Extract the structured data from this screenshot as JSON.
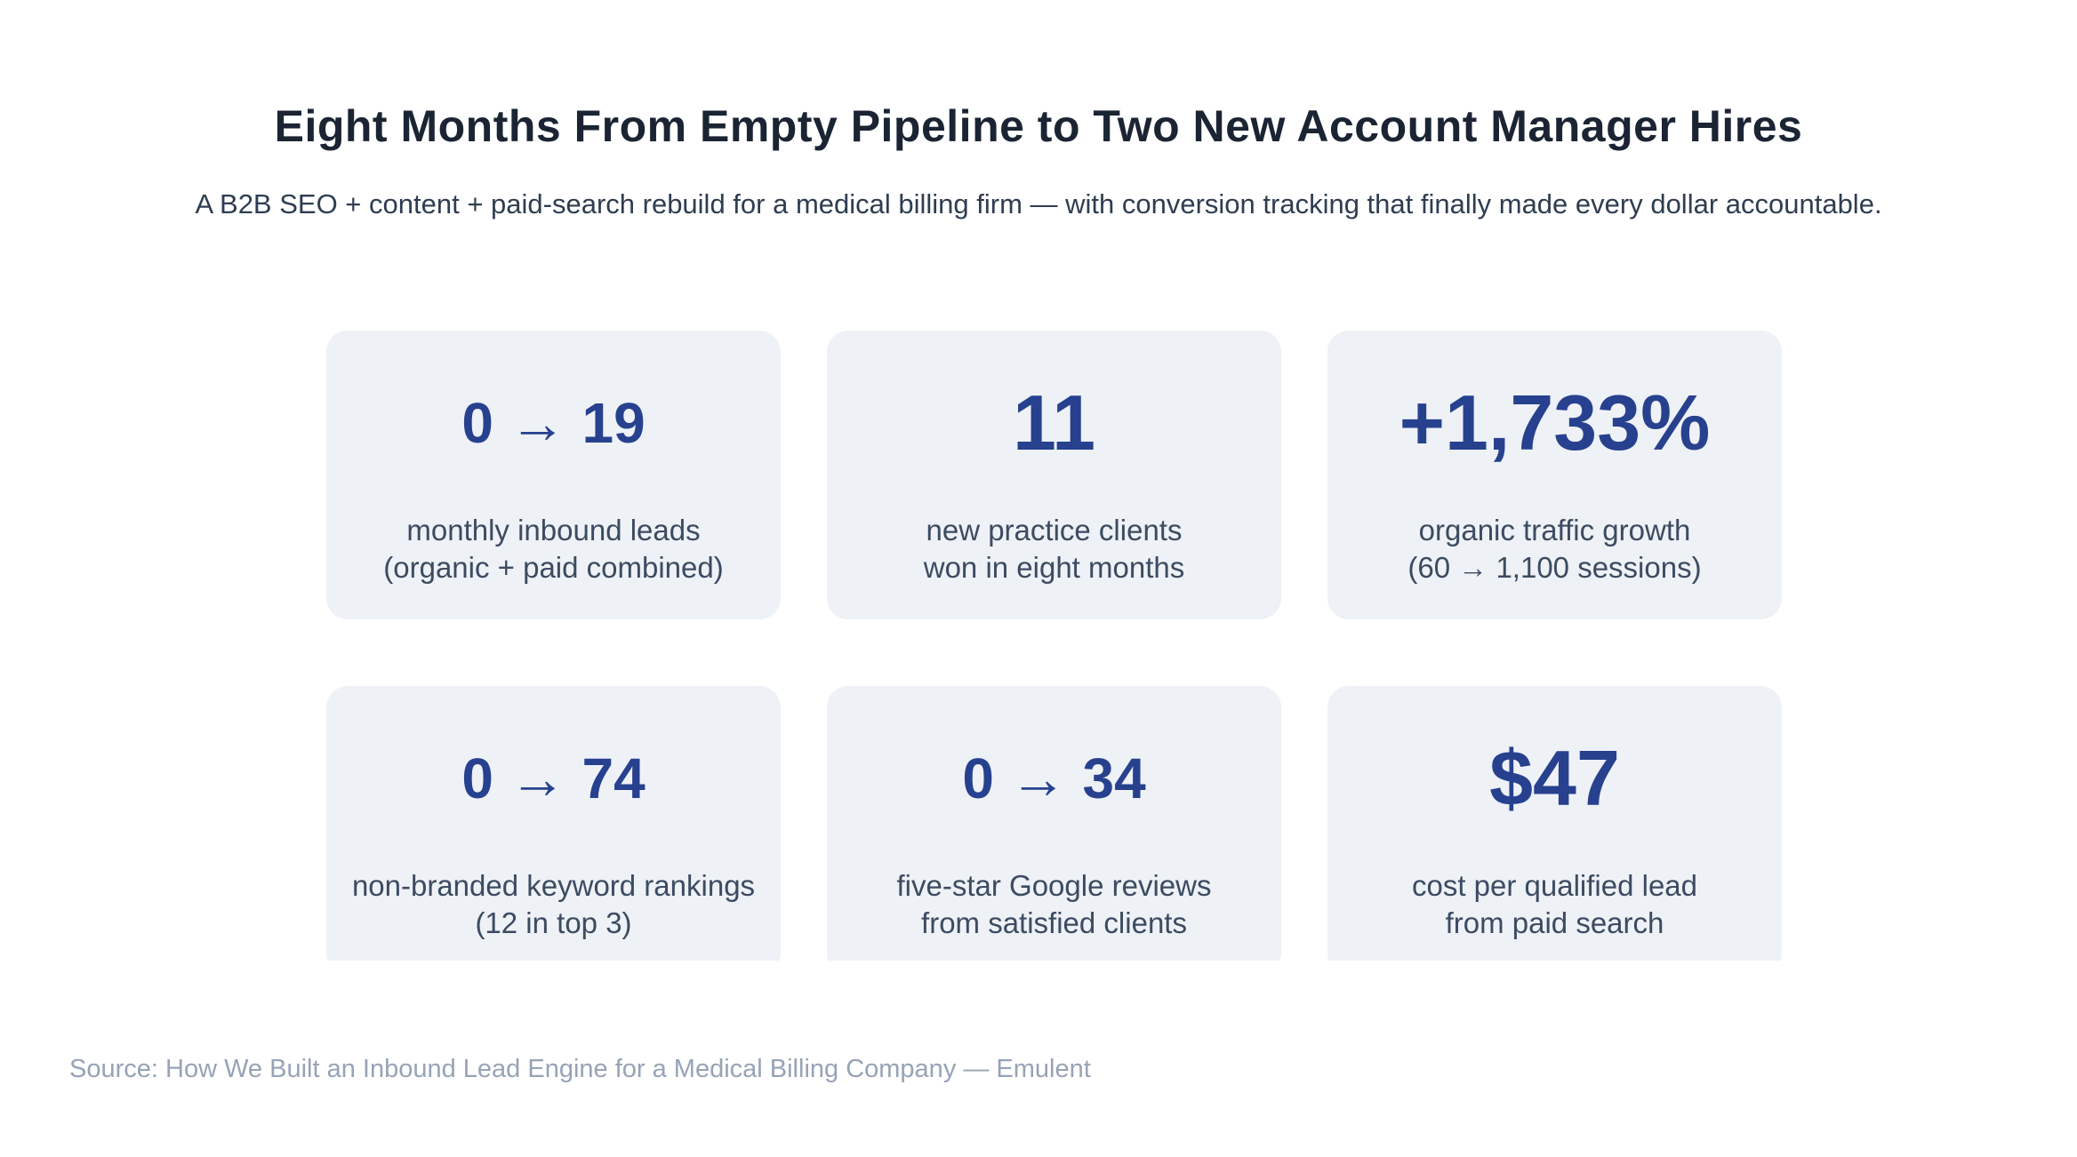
{
  "header": {
    "title": "Eight Months From Empty Pipeline to Two New Account Manager Hires",
    "subtitle": "A B2B SEO + content + paid-search rebuild for a medical billing firm — with conversion tracking that finally made every dollar accountable."
  },
  "stats": [
    {
      "value": "0 → 19",
      "label_line1": "monthly inbound leads",
      "label_line2": "(organic + paid combined)"
    },
    {
      "value": "11",
      "label_line1": "new practice clients",
      "label_line2": "won in eight months"
    },
    {
      "value": "+1,733%",
      "label_line1": "organic traffic growth",
      "label_line2": "(60 → 1,100 sessions)"
    },
    {
      "value": "0 → 74",
      "label_line1": "non-branded keyword rankings",
      "label_line2": "(12 in top 3)"
    },
    {
      "value": "0 → 34",
      "label_line1": "five-star Google reviews",
      "label_line2": "from satisfied clients"
    },
    {
      "value": "$47",
      "label_line1": "cost per qualified lead",
      "label_line2": "from paid search"
    }
  ],
  "source": "Source: How We Built an Inbound Lead Engine for a Medical Billing Company — Emulent",
  "colors": {
    "background": "#ffffff",
    "card_background": "#eef1f6",
    "title": "#1b2433",
    "subtitle": "#2f3d51",
    "stat_value": "#27418f",
    "stat_label": "#3c4b61",
    "source": "#97a3b6"
  },
  "chart_data": {
    "type": "table",
    "title": "Eight Months From Empty Pipeline to Two New Account Manager Hires",
    "subtitle": "A B2B SEO + content + paid-search rebuild for a medical billing firm — with conversion tracking that finally made every dollar accountable.",
    "stats": [
      {
        "value": "0 → 19",
        "from": 0,
        "to": 19,
        "label": "monthly inbound leads (organic + paid combined)"
      },
      {
        "value": "11",
        "count": 11,
        "label": "new practice clients won in eight months"
      },
      {
        "value": "+1,733%",
        "percent_change": 1733,
        "sessions_from": 60,
        "sessions_to": 1100,
        "label": "organic traffic growth (60 → 1,100 sessions)"
      },
      {
        "value": "0 → 74",
        "from": 0,
        "to": 74,
        "in_top_3": 12,
        "label": "non-branded keyword rankings (12 in top 3)"
      },
      {
        "value": "0 → 34",
        "from": 0,
        "to": 34,
        "label": "five-star Google reviews from satisfied clients"
      },
      {
        "value": "$47",
        "usd": 47,
        "label": "cost per qualified lead from paid search"
      }
    ],
    "source": "Source: How We Built an Inbound Lead Engine for a Medical Billing Company — Emulent"
  }
}
